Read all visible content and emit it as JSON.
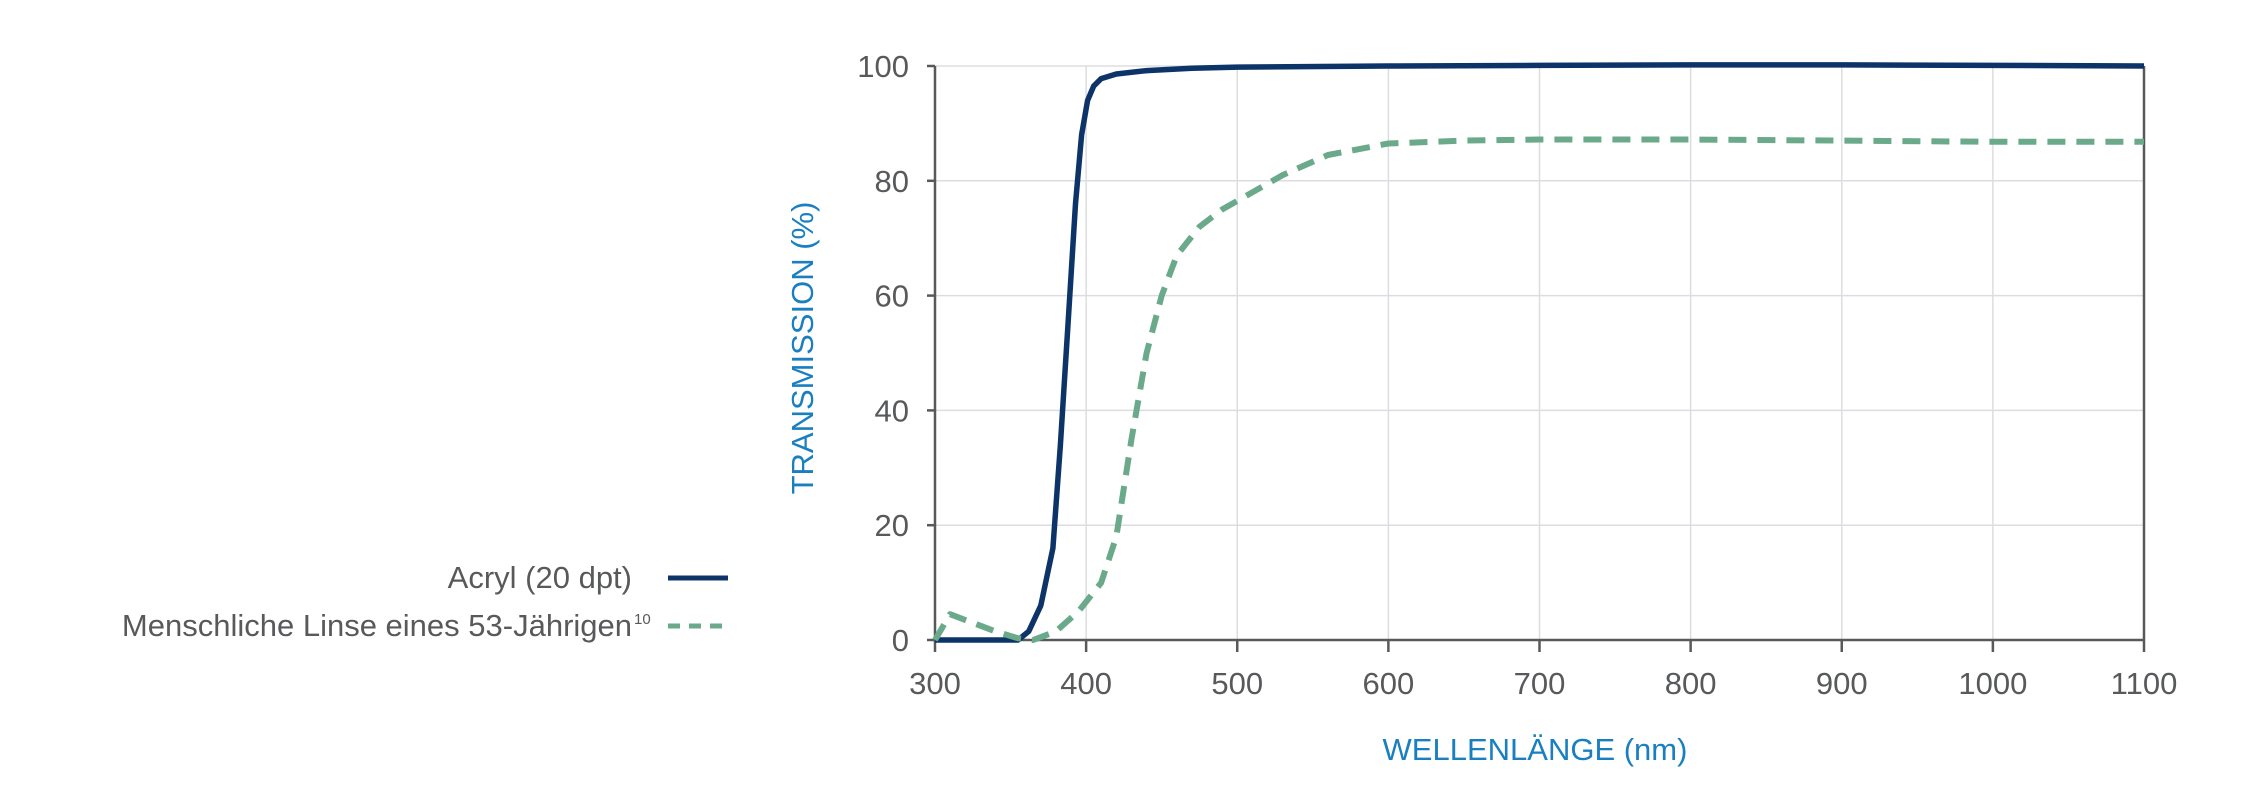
{
  "chart_data": {
    "type": "line",
    "xlabel": "WELLENLÄNGE (nm)",
    "ylabel": "TRANSMISSION (%)",
    "xlim": [
      300,
      1100
    ],
    "ylim": [
      0,
      100
    ],
    "x_ticks": [
      300,
      400,
      500,
      600,
      700,
      800,
      900,
      1000,
      1100
    ],
    "y_ticks": [
      0,
      20,
      40,
      60,
      80,
      100
    ],
    "x_tick_labels": [
      "300",
      "400",
      "500",
      "600",
      "700",
      "800",
      "900",
      "1000",
      "1100"
    ],
    "y_tick_labels": [
      "0",
      "20",
      "40",
      "60",
      "80",
      "100"
    ],
    "grid": true,
    "legend_position": "left",
    "series": [
      {
        "name": "Acryl (20 dpt)",
        "color": "#0d3468",
        "line_style": "solid",
        "points": [
          [
            300,
            0
          ],
          [
            355,
            0
          ],
          [
            362,
            1.5
          ],
          [
            370,
            6
          ],
          [
            378,
            16
          ],
          [
            383,
            34
          ],
          [
            388,
            55
          ],
          [
            393,
            76
          ],
          [
            397,
            88
          ],
          [
            401,
            94
          ],
          [
            405,
            96.5
          ],
          [
            410,
            97.8
          ],
          [
            420,
            98.6
          ],
          [
            440,
            99.2
          ],
          [
            470,
            99.6
          ],
          [
            500,
            99.8
          ],
          [
            600,
            100
          ],
          [
            700,
            100.1
          ],
          [
            800,
            100.2
          ],
          [
            900,
            100.2
          ],
          [
            1000,
            100.1
          ],
          [
            1100,
            100
          ]
        ]
      },
      {
        "name": "Menschliche Linse eines 53-Jährigen",
        "name_superscript": "10",
        "color": "#6aaa8a",
        "line_style": "dashed",
        "points": [
          [
            300,
            0
          ],
          [
            310,
            4.5
          ],
          [
            325,
            3
          ],
          [
            340,
            1.5
          ],
          [
            355,
            0.3
          ],
          [
            365,
            0
          ],
          [
            380,
            1.5
          ],
          [
            395,
            5
          ],
          [
            410,
            10
          ],
          [
            420,
            18
          ],
          [
            430,
            35
          ],
          [
            440,
            50
          ],
          [
            450,
            60
          ],
          [
            460,
            67
          ],
          [
            475,
            72
          ],
          [
            490,
            75
          ],
          [
            510,
            78
          ],
          [
            530,
            81
          ],
          [
            560,
            84.5
          ],
          [
            600,
            86.5
          ],
          [
            650,
            87
          ],
          [
            700,
            87.2
          ],
          [
            800,
            87.2
          ],
          [
            900,
            87
          ],
          [
            1000,
            86.8
          ],
          [
            1100,
            86.8
          ]
        ]
      }
    ]
  }
}
